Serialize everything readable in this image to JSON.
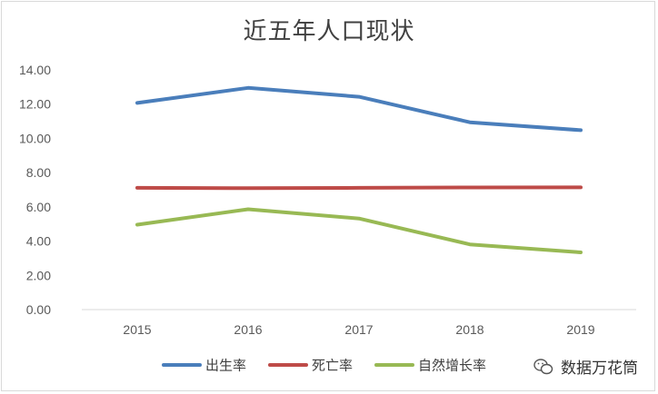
{
  "chart_data": {
    "type": "line",
    "title": "近五年人口现状",
    "categories": [
      "2015",
      "2016",
      "2017",
      "2018",
      "2019"
    ],
    "series": [
      {
        "name": "出生率",
        "color": "#4a7ebb",
        "values": [
          12.07,
          12.95,
          12.43,
          10.94,
          10.48
        ]
      },
      {
        "name": "死亡率",
        "color": "#be4b48",
        "values": [
          7.11,
          7.09,
          7.11,
          7.13,
          7.14
        ]
      },
      {
        "name": "自然增长率",
        "color": "#98b954",
        "values": [
          4.96,
          5.86,
          5.32,
          3.81,
          3.34
        ]
      }
    ],
    "y_ticks": [
      "0.00",
      "2.00",
      "4.00",
      "6.00",
      "8.00",
      "10.00",
      "12.00",
      "14.00"
    ],
    "ylim": [
      0,
      14
    ],
    "grid": false,
    "legend_position": "bottom"
  },
  "watermark": {
    "text": "数据万花筒",
    "icon": "wechat-icon"
  }
}
